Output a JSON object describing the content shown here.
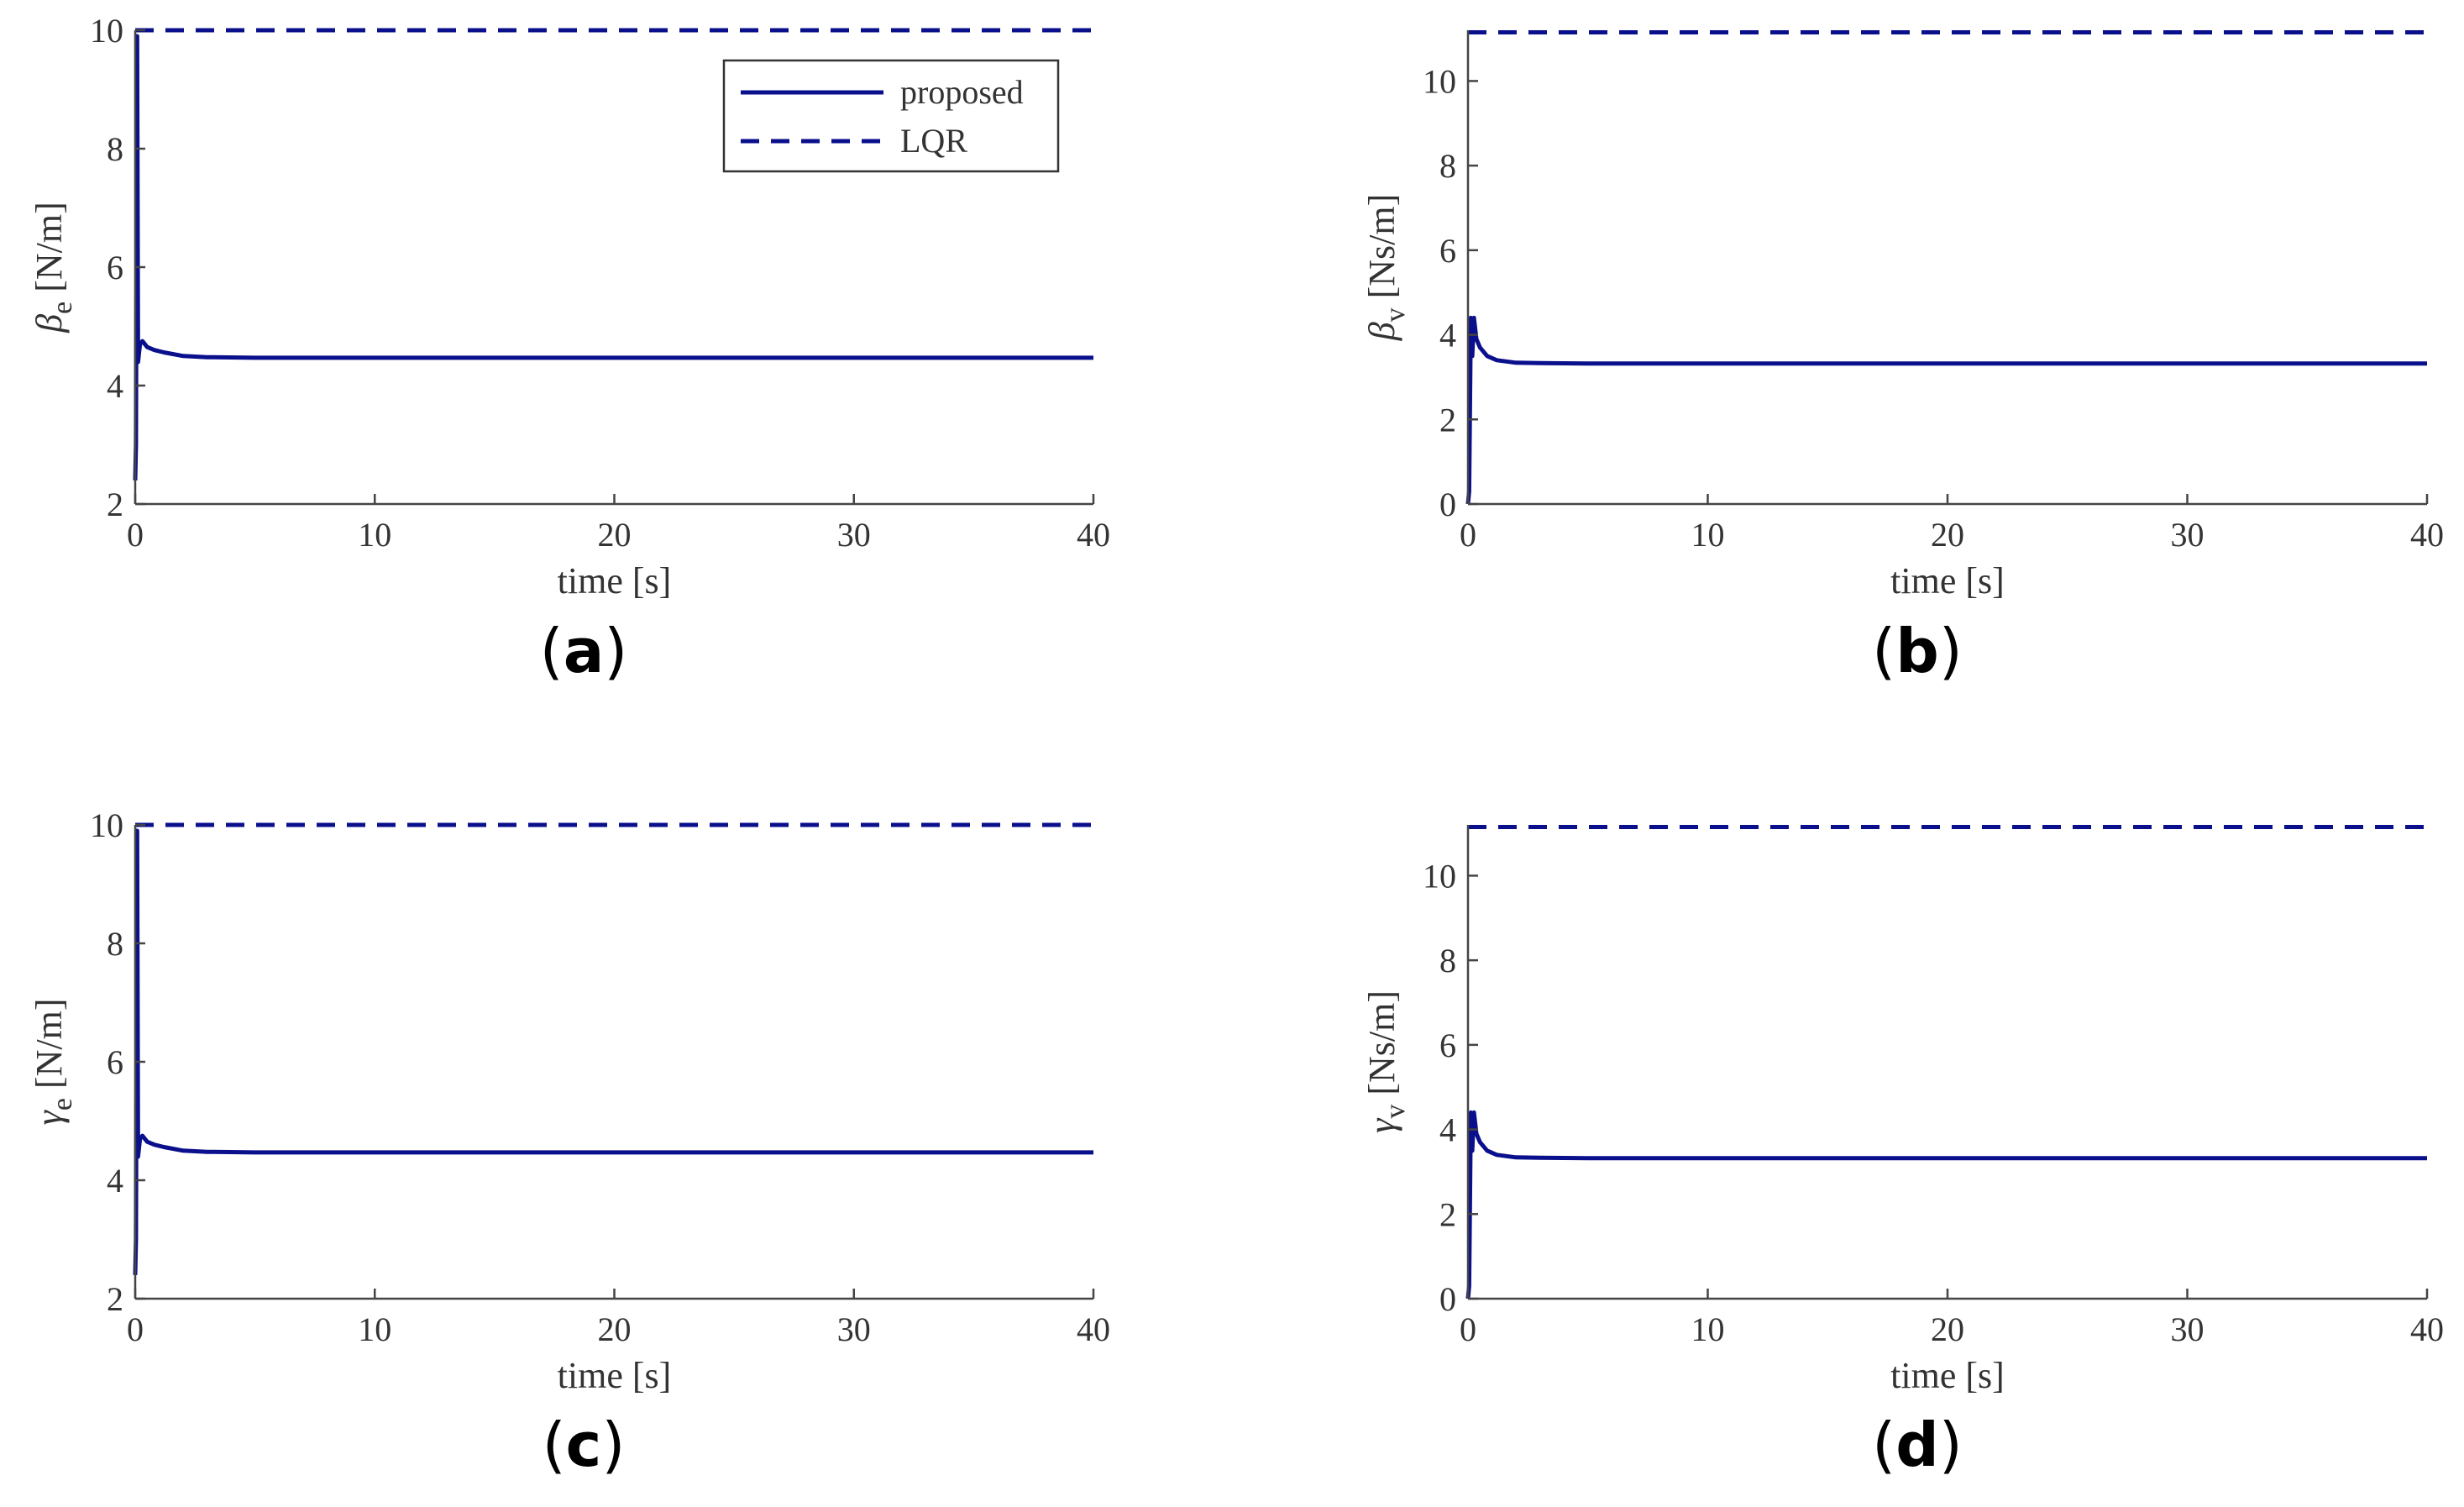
{
  "colors": {
    "series": "#0a0f8c",
    "axis": "#444444",
    "text": "#333333"
  },
  "chart_data": [
    {
      "type": "line",
      "panel_label": "a",
      "ylabel_symbol": "β",
      "ylabel_sub": "e",
      "ylabel_unit": "[N/m]",
      "xlabel": "time [s]",
      "xlim": [
        0,
        40
      ],
      "ylim": [
        2,
        10
      ],
      "xticks": [
        0,
        10,
        20,
        30,
        40
      ],
      "yticks": [
        2,
        4,
        6,
        8,
        10
      ],
      "legend": {
        "show": true,
        "location": "top-right"
      },
      "series": [
        {
          "name": "proposed",
          "style": "solid",
          "points": [
            [
              0,
              2.4
            ],
            [
              0.03,
              3.0
            ],
            [
              0.08,
              9.9
            ],
            [
              0.12,
              4.4
            ],
            [
              0.2,
              4.7
            ],
            [
              0.3,
              4.75
            ],
            [
              0.5,
              4.65
            ],
            [
              0.8,
              4.6
            ],
            [
              1.2,
              4.56
            ],
            [
              2.0,
              4.5
            ],
            [
              3.0,
              4.48
            ],
            [
              5.0,
              4.47
            ],
            [
              10.0,
              4.47
            ],
            [
              20.0,
              4.47
            ],
            [
              30.0,
              4.47
            ],
            [
              40.0,
              4.47
            ]
          ]
        },
        {
          "name": "LQR",
          "style": "dashed",
          "points": [
            [
              0,
              10
            ],
            [
              40,
              10
            ]
          ]
        }
      ]
    },
    {
      "type": "line",
      "panel_label": "b",
      "ylabel_symbol": "β",
      "ylabel_sub": "v",
      "ylabel_unit": "[Ns/m]",
      "xlabel": "time [s]",
      "xlim": [
        0,
        40
      ],
      "ylim": [
        0,
        11.2
      ],
      "xticks": [
        0,
        10,
        20,
        30,
        40
      ],
      "yticks": [
        0,
        2,
        4,
        6,
        8,
        10
      ],
      "legend": {
        "show": false
      },
      "series": [
        {
          "name": "proposed",
          "style": "solid",
          "points": [
            [
              0,
              0
            ],
            [
              0.05,
              0.3
            ],
            [
              0.12,
              4.4
            ],
            [
              0.18,
              3.5
            ],
            [
              0.25,
              4.4
            ],
            [
              0.35,
              3.9
            ],
            [
              0.5,
              3.7
            ],
            [
              0.8,
              3.5
            ],
            [
              1.2,
              3.4
            ],
            [
              2.0,
              3.34
            ],
            [
              3.0,
              3.33
            ],
            [
              5.0,
              3.32
            ],
            [
              10.0,
              3.32
            ],
            [
              20.0,
              3.32
            ],
            [
              30.0,
              3.32
            ],
            [
              40.0,
              3.32
            ]
          ]
        },
        {
          "name": "LQR",
          "style": "dashed",
          "points": [
            [
              0,
              11.15
            ],
            [
              40,
              11.15
            ]
          ]
        }
      ]
    },
    {
      "type": "line",
      "panel_label": "c",
      "ylabel_symbol": "γ",
      "ylabel_sub": "e",
      "ylabel_unit": "[N/m]",
      "xlabel": "time [s]",
      "xlim": [
        0,
        40
      ],
      "ylim": [
        2,
        10
      ],
      "xticks": [
        0,
        10,
        20,
        30,
        40
      ],
      "yticks": [
        2,
        4,
        6,
        8,
        10
      ],
      "legend": {
        "show": false
      },
      "series": [
        {
          "name": "proposed",
          "style": "solid",
          "points": [
            [
              0,
              2.4
            ],
            [
              0.03,
              3.0
            ],
            [
              0.08,
              9.9
            ],
            [
              0.12,
              4.4
            ],
            [
              0.2,
              4.7
            ],
            [
              0.3,
              4.75
            ],
            [
              0.5,
              4.65
            ],
            [
              0.8,
              4.6
            ],
            [
              1.2,
              4.56
            ],
            [
              2.0,
              4.5
            ],
            [
              3.0,
              4.48
            ],
            [
              5.0,
              4.47
            ],
            [
              10.0,
              4.47
            ],
            [
              20.0,
              4.47
            ],
            [
              30.0,
              4.47
            ],
            [
              40.0,
              4.47
            ]
          ]
        },
        {
          "name": "LQR",
          "style": "dashed",
          "points": [
            [
              0,
              10
            ],
            [
              40,
              10
            ]
          ]
        }
      ]
    },
    {
      "type": "line",
      "panel_label": "d",
      "ylabel_symbol": "γ",
      "ylabel_sub": "v",
      "ylabel_unit": "[Ns/m]",
      "xlabel": "time [s]",
      "xlim": [
        0,
        40
      ],
      "ylim": [
        0,
        11.2
      ],
      "xticks": [
        0,
        10,
        20,
        30,
        40
      ],
      "yticks": [
        0,
        2,
        4,
        6,
        8,
        10
      ],
      "legend": {
        "show": false
      },
      "series": [
        {
          "name": "proposed",
          "style": "solid",
          "points": [
            [
              0,
              0
            ],
            [
              0.05,
              0.3
            ],
            [
              0.12,
              4.4
            ],
            [
              0.18,
              3.5
            ],
            [
              0.25,
              4.4
            ],
            [
              0.35,
              3.9
            ],
            [
              0.5,
              3.7
            ],
            [
              0.8,
              3.5
            ],
            [
              1.2,
              3.4
            ],
            [
              2.0,
              3.34
            ],
            [
              3.0,
              3.33
            ],
            [
              5.0,
              3.32
            ],
            [
              10.0,
              3.32
            ],
            [
              20.0,
              3.32
            ],
            [
              30.0,
              3.32
            ],
            [
              40.0,
              3.32
            ]
          ]
        },
        {
          "name": "LQR",
          "style": "dashed",
          "points": [
            [
              0,
              11.15
            ],
            [
              40,
              11.15
            ]
          ]
        }
      ]
    }
  ]
}
